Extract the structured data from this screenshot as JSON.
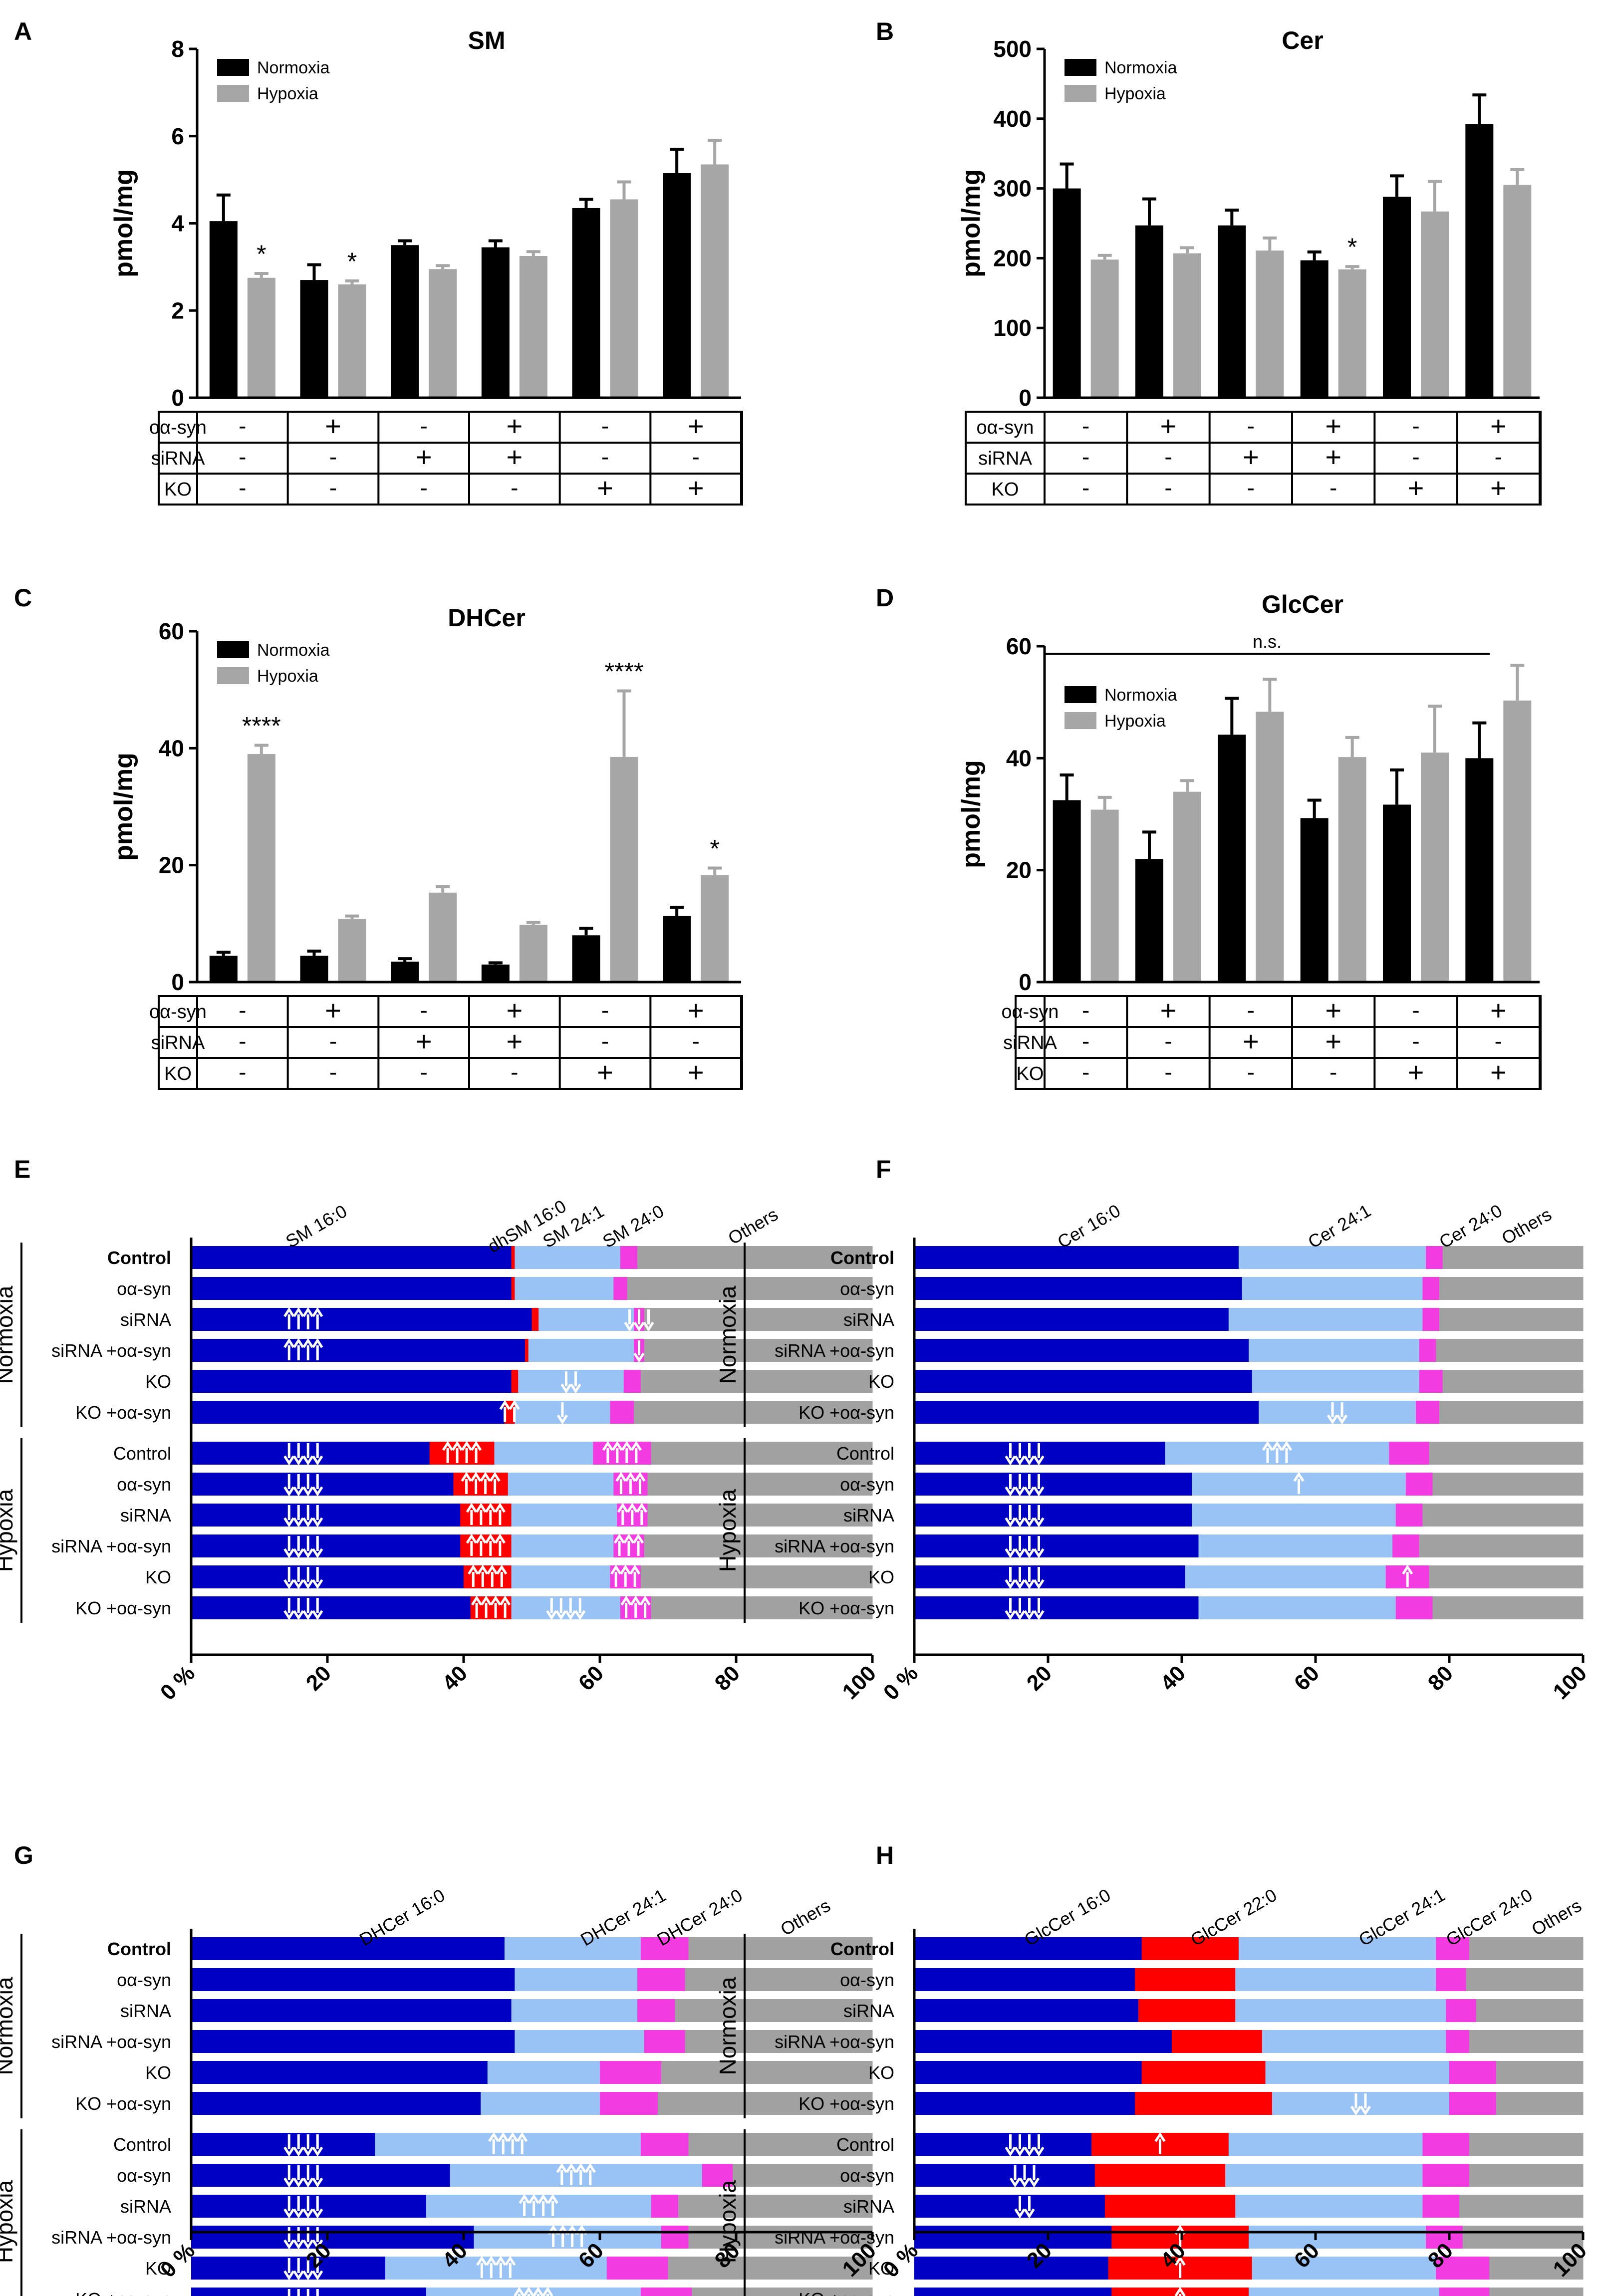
{
  "colors": {
    "normoxia": "#000000",
    "hypoxia": "#a6a6a6",
    "seg_blue": "#0000c4",
    "seg_lightblue": "#99c2f5",
    "seg_red": "#ff0000",
    "seg_pink": "#f23ce1",
    "seg_grey": "#a1a1a1",
    "arrow": "#ffffff"
  },
  "condition_table": {
    "rows": [
      {
        "label": "oα-syn",
        "values": [
          "-",
          "+",
          "-",
          "+",
          "-",
          "+"
        ]
      },
      {
        "label": "siRNA",
        "values": [
          "-",
          "-",
          "+",
          "+",
          "-",
          "-"
        ]
      },
      {
        "label": "KO",
        "values": [
          "-",
          "-",
          "-",
          "-",
          "+",
          "+"
        ]
      }
    ]
  },
  "chart_data": [
    {
      "panel": "A",
      "type": "bar",
      "title": "SM",
      "ylabel": "pmol/mg",
      "ylim": [
        0,
        8
      ],
      "yticks": [
        "0",
        "2",
        "4",
        "6",
        "8"
      ],
      "legend": [
        "Normoxia",
        "Hypoxia"
      ],
      "series": [
        {
          "name": "Normoxia",
          "values": [
            4.05,
            2.7,
            3.5,
            3.45,
            4.35,
            5.15
          ],
          "errors": [
            0.6,
            0.35,
            0.1,
            0.15,
            0.2,
            0.55
          ]
        },
        {
          "name": "Hypoxia",
          "values": [
            2.75,
            2.6,
            2.95,
            3.25,
            4.55,
            5.35
          ],
          "errors": [
            0.1,
            0.08,
            0.08,
            0.1,
            0.4,
            0.55
          ]
        }
      ],
      "annotations": [
        {
          "group": 0,
          "series": 1,
          "text": "*"
        },
        {
          "group": 1,
          "series": 1,
          "text": "*"
        }
      ]
    },
    {
      "panel": "B",
      "type": "bar",
      "title": "Cer",
      "ylabel": "pmol/mg",
      "ylim": [
        0,
        500
      ],
      "yticks": [
        "0",
        "100",
        "200",
        "300",
        "400",
        "500"
      ],
      "legend": [
        "Normoxia",
        "Hypoxia"
      ],
      "series": [
        {
          "name": "Normoxia",
          "values": [
            300,
            247,
            247,
            197,
            288,
            392
          ],
          "errors": [
            35,
            38,
            22,
            12,
            30,
            42
          ]
        },
        {
          "name": "Hypoxia",
          "values": [
            198,
            207,
            211,
            184,
            267,
            305
          ],
          "errors": [
            6,
            8,
            18,
            4,
            43,
            22
          ]
        }
      ],
      "annotations": [
        {
          "group": 3,
          "series": 1,
          "text": "*"
        }
      ]
    },
    {
      "panel": "C",
      "type": "bar",
      "title": "DHCer",
      "ylabel": "pmol/mg",
      "ylim": [
        0,
        60
      ],
      "yticks": [
        "0",
        "20",
        "40",
        "60"
      ],
      "legend": [
        "Normoxia",
        "Hypoxia"
      ],
      "series": [
        {
          "name": "Normoxia",
          "values": [
            4.5,
            4.5,
            3.5,
            3.0,
            8.0,
            11.3
          ],
          "errors": [
            0.6,
            0.8,
            0.5,
            0.3,
            1.2,
            1.5
          ]
        },
        {
          "name": "Hypoxia",
          "values": [
            39,
            10.8,
            15.3,
            9.8,
            38.5,
            18.3
          ],
          "errors": [
            1.5,
            0.5,
            1.0,
            0.4,
            11.3,
            1.2
          ]
        }
      ],
      "annotations": [
        {
          "group": 0,
          "series": 1,
          "text": "****"
        },
        {
          "group": 4,
          "series": 1,
          "text": "****"
        },
        {
          "group": 5,
          "series": 1,
          "text": "*"
        }
      ]
    },
    {
      "panel": "D",
      "type": "bar",
      "title": "GlcCer",
      "ylabel": "pmol/mg",
      "ylim": [
        0,
        60
      ],
      "yticks": [
        "0",
        "20",
        "40",
        "60"
      ],
      "legend": [
        "Normoxia",
        "Hypoxia"
      ],
      "series": [
        {
          "name": "Normoxia",
          "values": [
            32.5,
            22,
            44.2,
            29.3,
            31.7,
            40
          ],
          "errors": [
            4.5,
            4.8,
            6.5,
            3.2,
            6.2,
            6.3
          ]
        },
        {
          "name": "Hypoxia",
          "values": [
            30.8,
            34,
            48.3,
            40.2,
            41,
            50.3
          ],
          "errors": [
            2.2,
            2,
            5.8,
            3.5,
            8.3,
            6.3
          ]
        }
      ],
      "annotations": [
        {
          "text": "n.s.",
          "span": "all"
        }
      ]
    },
    {
      "panel": "E",
      "type": "stacked-bar",
      "xlim": [
        0,
        100
      ],
      "xticks": [
        "0 %",
        "20",
        "40",
        "60",
        "80",
        "100"
      ],
      "groups": [
        "Normoxia",
        "Hypoxia"
      ],
      "categories": [
        "Control",
        "oα-syn",
        "siRNA",
        "siRNA +oα-syn",
        "KO",
        "KO +oα-syn",
        "Control",
        "oα-syn",
        "siRNA",
        "siRNA +oα-syn",
        "KO",
        "KO +oα-syn"
      ],
      "segment_labels": [
        "SM 16:0",
        "dhSM 16:0",
        "SM 24:1",
        "SM 24:0",
        "Others"
      ],
      "segment_colors": [
        "blue",
        "red",
        "lightblue",
        "pink",
        "grey"
      ],
      "rows": [
        [
          47,
          0.5,
          15.5,
          2.5,
          34.5
        ],
        [
          47,
          0.5,
          14.5,
          2,
          36
        ],
        [
          50,
          1,
          14,
          1.5,
          33.5
        ],
        [
          49,
          0.5,
          15.5,
          1.5,
          33.5
        ],
        [
          47,
          1,
          15.5,
          2.5,
          34
        ],
        [
          46,
          1.5,
          14,
          3.5,
          35
        ],
        [
          35,
          9.5,
          14.5,
          8.5,
          32.5
        ],
        [
          38.5,
          8,
          15.5,
          5,
          33
        ],
        [
          39.5,
          7.5,
          15.5,
          4.5,
          33
        ],
        [
          39.5,
          7.5,
          15,
          4.5,
          33.5
        ],
        [
          40,
          7,
          14.5,
          4.5,
          34
        ],
        [
          41,
          6,
          16,
          4.5,
          32.5
        ]
      ],
      "arrows": [
        {
          "row": 2,
          "seg": 0,
          "dir": "up",
          "n": 4
        },
        {
          "row": 2,
          "seg": 3,
          "dir": "down",
          "n": 3
        },
        {
          "row": 3,
          "seg": 0,
          "dir": "up",
          "n": 4
        },
        {
          "row": 3,
          "seg": 3,
          "dir": "down",
          "n": 1
        },
        {
          "row": 4,
          "seg": 2,
          "dir": "down",
          "n": 2
        },
        {
          "row": 5,
          "seg": 1,
          "dir": "up",
          "n": 2
        },
        {
          "row": 5,
          "seg": 2,
          "dir": "down",
          "n": 1
        },
        {
          "row": 6,
          "seg": 0,
          "dir": "down",
          "n": 4
        },
        {
          "row": 6,
          "seg": 1,
          "dir": "up",
          "n": 4
        },
        {
          "row": 6,
          "seg": 3,
          "dir": "up",
          "n": 4
        },
        {
          "row": 7,
          "seg": 0,
          "dir": "down",
          "n": 4
        },
        {
          "row": 7,
          "seg": 1,
          "dir": "up",
          "n": 4
        },
        {
          "row": 7,
          "seg": 3,
          "dir": "up",
          "n": 3
        },
        {
          "row": 8,
          "seg": 0,
          "dir": "down",
          "n": 4
        },
        {
          "row": 8,
          "seg": 1,
          "dir": "up",
          "n": 4
        },
        {
          "row": 8,
          "seg": 3,
          "dir": "up",
          "n": 3
        },
        {
          "row": 9,
          "seg": 0,
          "dir": "down",
          "n": 4
        },
        {
          "row": 9,
          "seg": 1,
          "dir": "up",
          "n": 4
        },
        {
          "row": 9,
          "seg": 3,
          "dir": "up",
          "n": 3
        },
        {
          "row": 10,
          "seg": 0,
          "dir": "down",
          "n": 4
        },
        {
          "row": 10,
          "seg": 1,
          "dir": "up",
          "n": 4
        },
        {
          "row": 10,
          "seg": 3,
          "dir": "up",
          "n": 3
        },
        {
          "row": 11,
          "seg": 0,
          "dir": "down",
          "n": 4
        },
        {
          "row": 11,
          "seg": 1,
          "dir": "up",
          "n": 4
        },
        {
          "row": 11,
          "seg": 2,
          "dir": "down",
          "n": 4
        },
        {
          "row": 11,
          "seg": 3,
          "dir": "up",
          "n": 3
        }
      ]
    },
    {
      "panel": "F",
      "type": "stacked-bar",
      "xlim": [
        0,
        100
      ],
      "xticks": [
        "0 %",
        "20",
        "40",
        "60",
        "80",
        "100"
      ],
      "groups": [
        "Normoxia",
        "Hypoxia"
      ],
      "categories": [
        "Control",
        "oα-syn",
        "siRNA",
        "siRNA +oα-syn",
        "KO",
        "KO +oα-syn",
        "Control",
        "oα-syn",
        "siRNA",
        "siRNA +oα-syn",
        "KO",
        "KO +oα-syn"
      ],
      "segment_labels": [
        "Cer 16:0",
        "Cer 24:1",
        "Cer 24:0",
        "Others"
      ],
      "segment_colors": [
        "blue",
        "lightblue",
        "pink",
        "grey"
      ],
      "rows": [
        [
          48.5,
          28,
          2.5,
          21
        ],
        [
          49,
          27,
          2.5,
          21.5
        ],
        [
          47,
          29,
          2.5,
          21.5
        ],
        [
          50,
          25.5,
          2.5,
          22
        ],
        [
          50.5,
          25,
          3.5,
          21
        ],
        [
          51.5,
          23.5,
          3.5,
          21.5
        ],
        [
          37.5,
          33.5,
          6,
          23
        ],
        [
          41.5,
          32,
          4,
          22.5
        ],
        [
          41.5,
          30.5,
          4,
          24
        ],
        [
          42.5,
          29,
          4,
          24.5
        ],
        [
          40.5,
          30,
          6.5,
          23
        ],
        [
          42.5,
          29.5,
          5.5,
          22.5
        ]
      ],
      "arrows": [
        {
          "row": 5,
          "seg": 1,
          "dir": "down",
          "n": 2
        },
        {
          "row": 6,
          "seg": 0,
          "dir": "down",
          "n": 4
        },
        {
          "row": 6,
          "seg": 1,
          "dir": "up",
          "n": 3
        },
        {
          "row": 7,
          "seg": 0,
          "dir": "down",
          "n": 4
        },
        {
          "row": 7,
          "seg": 1,
          "dir": "up",
          "n": 1
        },
        {
          "row": 8,
          "seg": 0,
          "dir": "down",
          "n": 4
        },
        {
          "row": 9,
          "seg": 0,
          "dir": "down",
          "n": 4
        },
        {
          "row": 10,
          "seg": 0,
          "dir": "down",
          "n": 4
        },
        {
          "row": 10,
          "seg": 2,
          "dir": "up",
          "n": 1
        },
        {
          "row": 11,
          "seg": 0,
          "dir": "down",
          "n": 4
        }
      ]
    },
    {
      "panel": "G",
      "type": "stacked-bar",
      "xlim": [
        0,
        100
      ],
      "xticks": [
        "0 %",
        "20",
        "40",
        "60",
        "80",
        "100"
      ],
      "groups": [
        "Normoxia",
        "Hypoxia"
      ],
      "categories": [
        "Control",
        "oα-syn",
        "siRNA",
        "siRNA +oα-syn",
        "KO",
        "KO +oα-syn",
        "Control",
        "oα-syn",
        "siRNA",
        "siRNA +oα-syn",
        "KO",
        "KO +oα-syn"
      ],
      "segment_labels": [
        "DHCer 16:0",
        "DHCer 24:1",
        "DHCer 24:0",
        "Others"
      ],
      "segment_colors": [
        "blue",
        "lightblue",
        "pink",
        "grey"
      ],
      "rows": [
        [
          46,
          20,
          7,
          27
        ],
        [
          47.5,
          18,
          7,
          27.5
        ],
        [
          47,
          18.5,
          5.5,
          29
        ],
        [
          47.5,
          19,
          6,
          27.5
        ],
        [
          43.5,
          16.5,
          9,
          31
        ],
        [
          42.5,
          17.5,
          8.5,
          31.5
        ],
        [
          27,
          39,
          7,
          27
        ],
        [
          38,
          37,
          4.5,
          20.5
        ],
        [
          34.5,
          33,
          4,
          28.5
        ],
        [
          41.5,
          27.5,
          4,
          27
        ],
        [
          28.5,
          32.5,
          9,
          30
        ],
        [
          34.5,
          31.5,
          7.5,
          26.5
        ]
      ],
      "arrows": [
        {
          "row": 6,
          "seg": 0,
          "dir": "down",
          "n": 4
        },
        {
          "row": 6,
          "seg": 1,
          "dir": "up",
          "n": 4
        },
        {
          "row": 7,
          "seg": 0,
          "dir": "down",
          "n": 4
        },
        {
          "row": 7,
          "seg": 1,
          "dir": "up",
          "n": 4
        },
        {
          "row": 8,
          "seg": 0,
          "dir": "down",
          "n": 4
        },
        {
          "row": 8,
          "seg": 1,
          "dir": "up",
          "n": 4
        },
        {
          "row": 9,
          "seg": 0,
          "dir": "down",
          "n": 4
        },
        {
          "row": 9,
          "seg": 1,
          "dir": "up",
          "n": 4
        },
        {
          "row": 10,
          "seg": 0,
          "dir": "down",
          "n": 4
        },
        {
          "row": 10,
          "seg": 1,
          "dir": "up",
          "n": 4
        },
        {
          "row": 11,
          "seg": 0,
          "dir": "down",
          "n": 4
        },
        {
          "row": 11,
          "seg": 1,
          "dir": "up",
          "n": 4
        }
      ]
    },
    {
      "panel": "H",
      "type": "stacked-bar",
      "xlim": [
        0,
        100
      ],
      "xticks": [
        "0 %",
        "20",
        "40",
        "60",
        "80",
        "100"
      ],
      "groups": [
        "Normoxia",
        "Hypoxia"
      ],
      "categories": [
        "Control",
        "oα-syn",
        "siRNA",
        "siRNA +oα-syn",
        "KO",
        "KO +oα-syn",
        "Control",
        "oα-syn",
        "siRNA",
        "siRNA +oα-syn",
        "KO",
        "KO +oα-syn"
      ],
      "segment_labels": [
        "GlcCer 16:0",
        "GlcCer 22:0",
        "GlcCer 24:1",
        "GlcCer 24:0",
        "Others"
      ],
      "segment_colors": [
        "blue",
        "red",
        "lightblue",
        "pink",
        "grey"
      ],
      "rows": [
        [
          34,
          14.5,
          29.5,
          5,
          17
        ],
        [
          33,
          15,
          30,
          4.5,
          17.5
        ],
        [
          33.5,
          14.5,
          31.5,
          4.5,
          16
        ],
        [
          38.5,
          13.5,
          27.5,
          3.5,
          17
        ],
        [
          34,
          18.5,
          27.5,
          7,
          13
        ],
        [
          33,
          20.5,
          26.5,
          7,
          13
        ],
        [
          26.5,
          20.5,
          29,
          7,
          17
        ],
        [
          27,
          19.5,
          29.5,
          7,
          17
        ],
        [
          28.5,
          19.5,
          28,
          5.5,
          18.5
        ],
        [
          29.5,
          20.5,
          26.5,
          5.5,
          18
        ],
        [
          29,
          21.5,
          27.5,
          8,
          14
        ],
        [
          29.5,
          20.5,
          28.5,
          7.5,
          14
        ]
      ],
      "arrows": [
        {
          "row": 5,
          "seg": 2,
          "dir": "down",
          "n": 2
        },
        {
          "row": 6,
          "seg": 0,
          "dir": "down",
          "n": 4
        },
        {
          "row": 6,
          "seg": 1,
          "dir": "up",
          "n": 1
        },
        {
          "row": 7,
          "seg": 0,
          "dir": "down",
          "n": 3
        },
        {
          "row": 8,
          "seg": 0,
          "dir": "down",
          "n": 2
        },
        {
          "row": 9,
          "seg": 1,
          "dir": "up",
          "n": 1
        },
        {
          "row": 10,
          "seg": 1,
          "dir": "up",
          "n": 1
        },
        {
          "row": 11,
          "seg": 1,
          "dir": "up",
          "n": 1
        }
      ]
    }
  ]
}
